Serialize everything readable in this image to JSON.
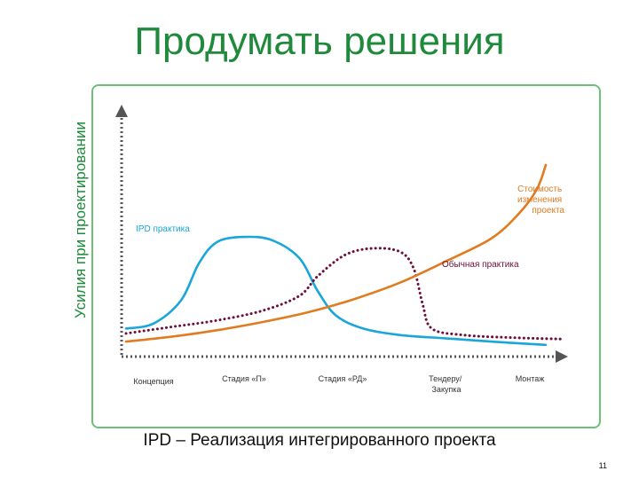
{
  "slide": {
    "title": "Продумать решения",
    "footer": "IPD – Реализация интегрированного проекта",
    "page_number": "11"
  },
  "colors": {
    "title": "#1f8a3c",
    "frame": "#6cc07a",
    "ipd": "#1aa6d8",
    "traditional": "#6b0f3a",
    "cost": "#e07b22",
    "axis": "#555555"
  },
  "chart_data": {
    "type": "line",
    "title": "",
    "ylabel": "Усилия при проектировании",
    "xlabel": "",
    "categories": [
      "Концепция",
      "Стадия «П»",
      "Стадия «РД»",
      "Тендеру/ Закупка",
      "Монтаж"
    ],
    "x_range": [
      0,
      5
    ],
    "y_range": [
      0,
      10
    ],
    "grid": false,
    "series": [
      {
        "name": "IPD практика",
        "color": "#1aa6d8",
        "style": "solid",
        "points": [
          [
            0.0,
            1.5
          ],
          [
            0.3,
            1.8
          ],
          [
            0.6,
            3.2
          ],
          [
            0.8,
            5.5
          ],
          [
            1.0,
            6.8
          ],
          [
            1.3,
            7.1
          ],
          [
            1.6,
            6.9
          ],
          [
            1.9,
            5.8
          ],
          [
            2.1,
            3.8
          ],
          [
            2.3,
            2.3
          ],
          [
            2.6,
            1.5
          ],
          [
            3.0,
            1.1
          ],
          [
            3.5,
            0.9
          ],
          [
            4.0,
            0.7
          ],
          [
            4.6,
            0.5
          ]
        ]
      },
      {
        "name": "Обычная практика",
        "color": "#6b0f3a",
        "style": "dotted",
        "points": [
          [
            0.0,
            1.2
          ],
          [
            0.5,
            1.6
          ],
          [
            1.0,
            2.0
          ],
          [
            1.5,
            2.6
          ],
          [
            1.9,
            3.5
          ],
          [
            2.1,
            4.7
          ],
          [
            2.4,
            6.0
          ],
          [
            2.7,
            6.4
          ],
          [
            3.0,
            6.2
          ],
          [
            3.15,
            5.2
          ],
          [
            3.25,
            3.0
          ],
          [
            3.35,
            1.5
          ],
          [
            3.7,
            1.1
          ],
          [
            4.2,
            0.95
          ],
          [
            4.8,
            0.85
          ]
        ]
      },
      {
        "name": "Стоимость изменения проекта",
        "color": "#e07b22",
        "style": "solid",
        "points": [
          [
            0.0,
            0.7
          ],
          [
            0.5,
            1.0
          ],
          [
            1.0,
            1.4
          ],
          [
            1.5,
            1.9
          ],
          [
            2.0,
            2.5
          ],
          [
            2.5,
            3.3
          ],
          [
            3.0,
            4.3
          ],
          [
            3.5,
            5.6
          ],
          [
            4.0,
            7.0
          ],
          [
            4.3,
            8.5
          ],
          [
            4.5,
            10.0
          ],
          [
            4.6,
            11.5
          ]
        ]
      }
    ],
    "annotations": [
      {
        "text": "IPD практика",
        "series": "IPD практика"
      },
      {
        "text": "Обычная практика",
        "series": "Обычная практика"
      },
      {
        "text": "Стоимость изменения проекта",
        "series": "Стоимость изменения проекта"
      }
    ]
  }
}
